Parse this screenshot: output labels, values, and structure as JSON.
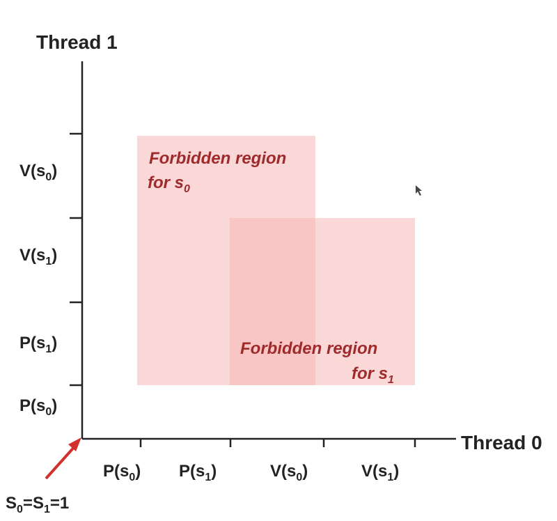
{
  "axes": {
    "x_title": "Thread 0",
    "y_title": "Thread 1"
  },
  "x_ticks": [
    {
      "main": "P(s",
      "sub": "0",
      "close": ")"
    },
    {
      "main": "P(s",
      "sub": "1",
      "close": ")"
    },
    {
      "main": "V(s",
      "sub": "0",
      "close": ")"
    },
    {
      "main": "V(s",
      "sub": "1",
      "close": ")"
    }
  ],
  "y_ticks": [
    {
      "main": "P(s",
      "sub": "0",
      "close": ")"
    },
    {
      "main": "P(s",
      "sub": "1",
      "close": ")"
    },
    {
      "main": "V(s",
      "sub": "1",
      "close": ")"
    },
    {
      "main": "V(s",
      "sub": "0",
      "close": ")"
    }
  ],
  "regions": [
    {
      "line1": "Forbidden region",
      "line2_main": "for s",
      "line2_sub": "0",
      "color": "#f7c9c8"
    },
    {
      "line1": "Forbidden region",
      "line2_main": "for s",
      "line2_sub": "1",
      "color": "#f7c9c8"
    }
  ],
  "start_label": {
    "s0": "S",
    "sub0": "0",
    "mid": "=S",
    "sub1": "1",
    "end": "=1"
  },
  "colors": {
    "axis": "#222222",
    "arrow": "#d0312d",
    "region_fill": "#f5b8b6",
    "region_text": "#9e2a2b"
  }
}
